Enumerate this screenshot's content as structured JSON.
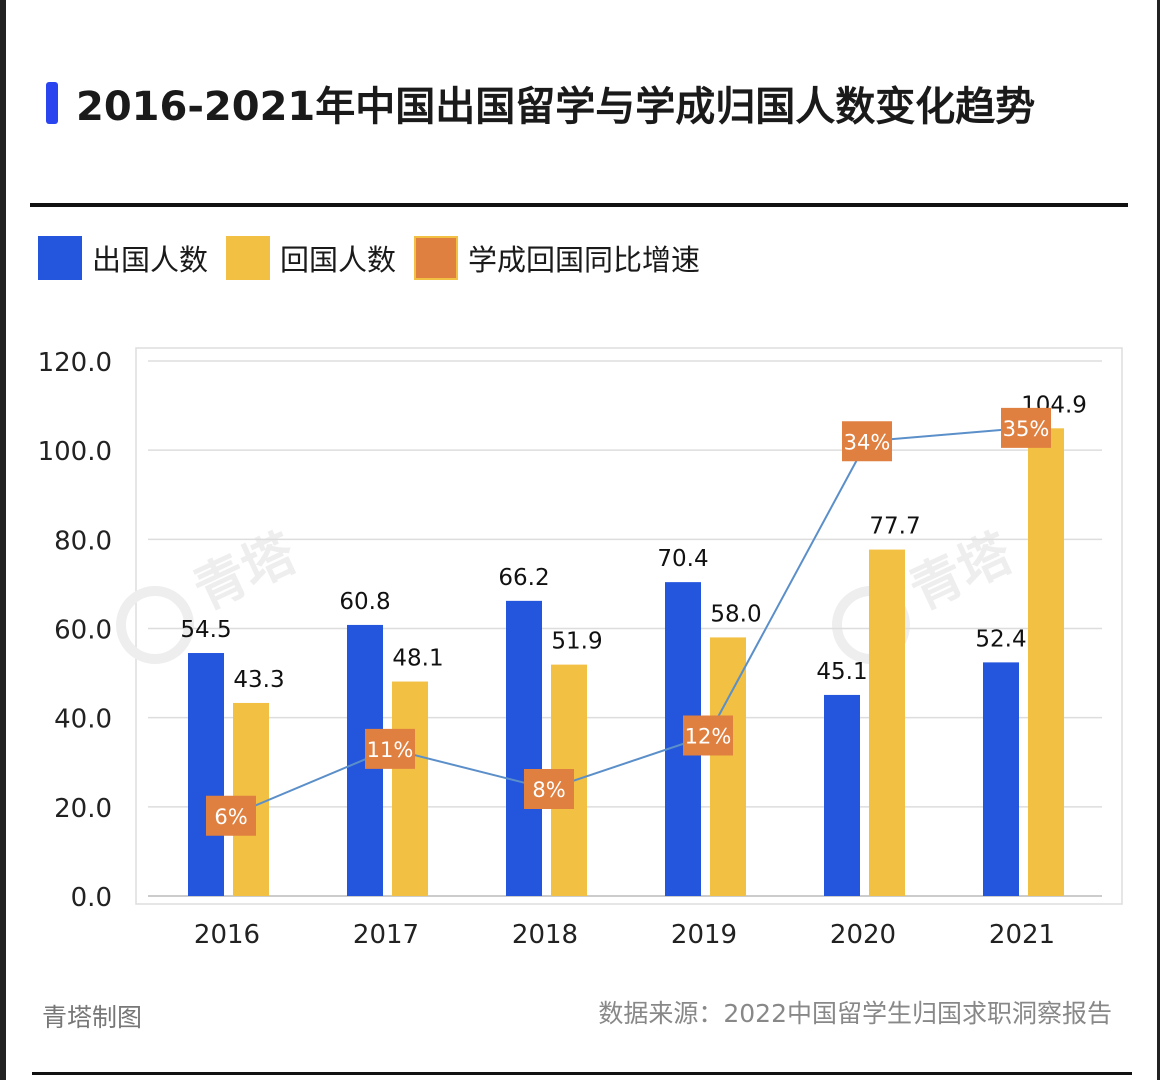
{
  "title": "2016-2021年中国出国留学与学成归国人数变化趋势",
  "watermark": "青塔",
  "footer": {
    "maker": "青塔制图",
    "source": "数据来源：2022中国留学生归国求职洞察报告"
  },
  "chart_data": {
    "type": "bar",
    "title": "2016-2021年中国出国留学与学成归国人数变化趋势",
    "categories": [
      "2016",
      "2017",
      "2018",
      "2019",
      "2020",
      "2021"
    ],
    "series": [
      {
        "name": "出国人数",
        "type": "bar",
        "color": "#2355dd",
        "values": [
          54.5,
          60.8,
          66.2,
          70.4,
          45.1,
          52.4
        ],
        "labels": [
          "54.5",
          "60.8",
          "66.2",
          "70.4",
          "45.1",
          "52.4"
        ]
      },
      {
        "name": "回国人数",
        "type": "bar",
        "color": "#f2c042",
        "values": [
          43.3,
          48.1,
          51.9,
          58.0,
          77.7,
          104.9
        ],
        "labels": [
          "43.3",
          "48.1",
          "51.9",
          "58.0",
          "77.7",
          "104.9"
        ]
      },
      {
        "name": "学成回国同比增速",
        "type": "line",
        "axis": "secondary",
        "color": "#e08040",
        "line_color": "#5b8fc9",
        "values": [
          6,
          11,
          8,
          12,
          34,
          35
        ],
        "labels": [
          "6%",
          "11%",
          "8%",
          "12%",
          "34%",
          "35%"
        ]
      }
    ],
    "ylim": [
      0,
      120
    ],
    "y2lim": [
      0,
      40
    ],
    "yticks": [
      "0.0",
      "20.0",
      "40.0",
      "60.0",
      "80.0",
      "100.0",
      "120.0"
    ],
    "grid": true,
    "legend": "top-left"
  }
}
